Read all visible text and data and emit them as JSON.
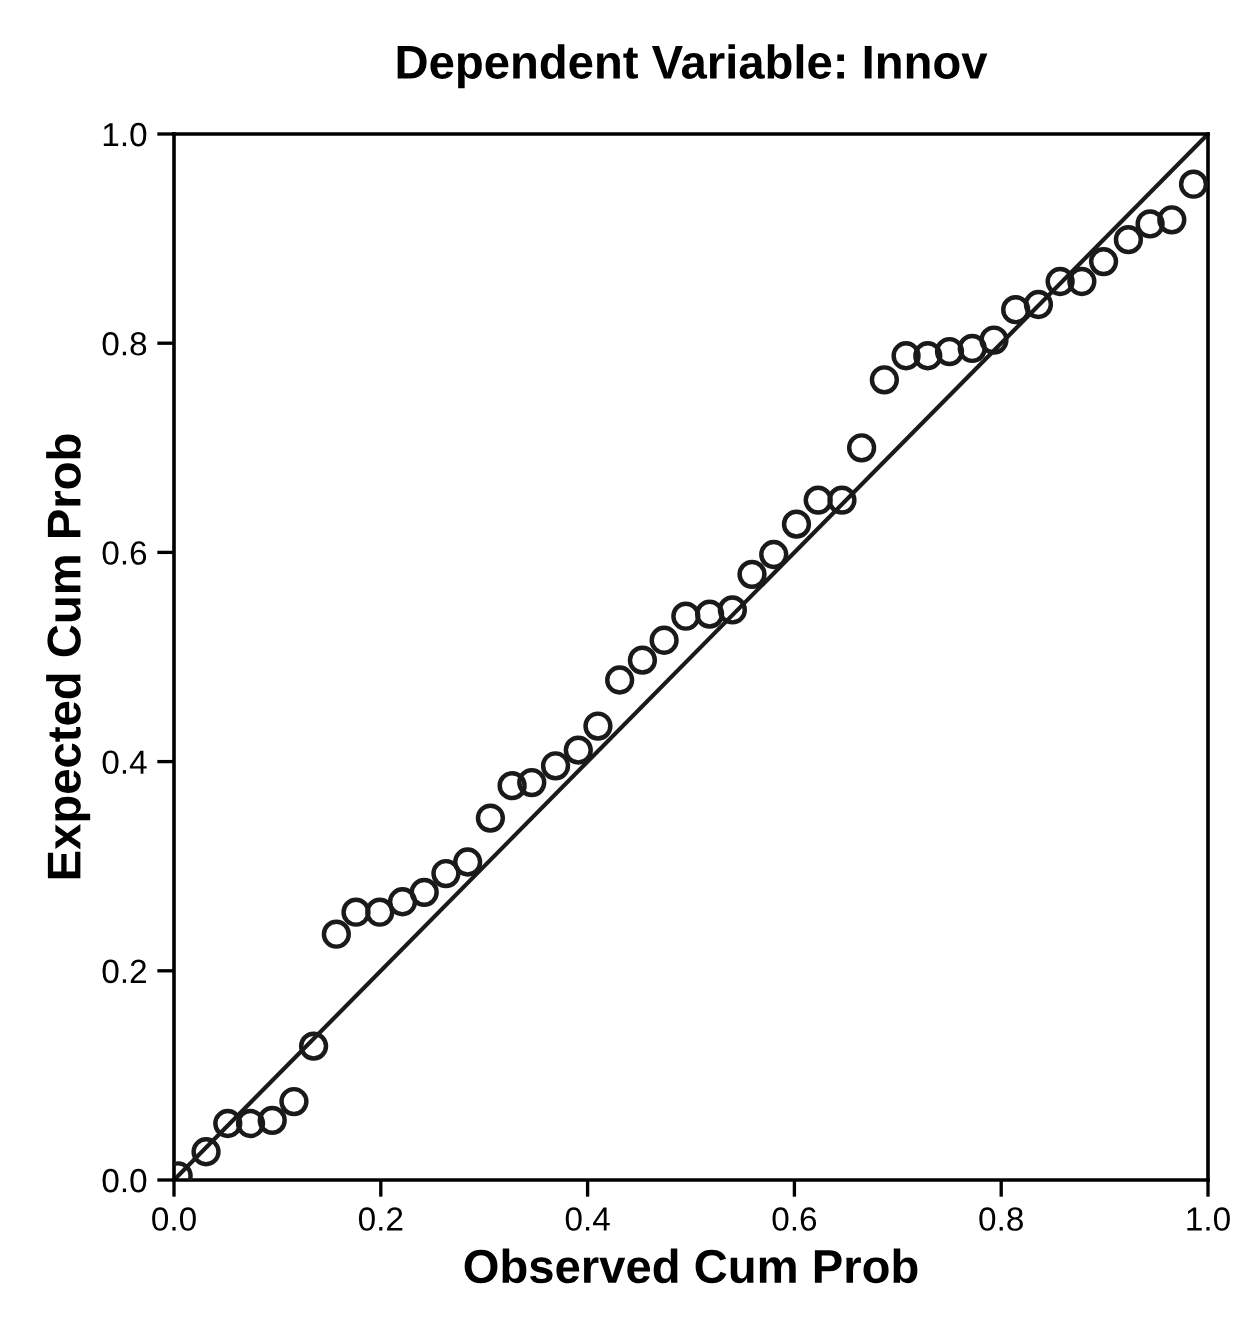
{
  "chart_data": {
    "type": "scatter",
    "title": "Dependent Variable: Innov",
    "xlabel": "Observed Cum Prob",
    "ylabel": "Expected Cum Prob",
    "xlim": [
      0,
      1
    ],
    "ylim": [
      0,
      1
    ],
    "xticks": [
      {
        "value": 0,
        "label": "0.0"
      },
      {
        "value": 0.2,
        "label": "0.2"
      },
      {
        "value": 0.4,
        "label": "0.4"
      },
      {
        "value": 0.6,
        "label": "0.6"
      },
      {
        "value": 0.8,
        "label": "0.8"
      },
      {
        "value": 1,
        "label": "1.0"
      }
    ],
    "yticks": [
      {
        "value": 0,
        "label": "0.0"
      },
      {
        "value": 0.2,
        "label": "0.2"
      },
      {
        "value": 0.4,
        "label": "0.4"
      },
      {
        "value": 0.6,
        "label": "0.6"
      },
      {
        "value": 0.8,
        "label": "0.8"
      },
      {
        "value": 1,
        "label": "1.0"
      }
    ],
    "grid": false,
    "legend": false,
    "series": [
      {
        "color": "#1a1a1a",
        "marker": "circle",
        "x": [
          0.004,
          0.031,
          0.052,
          0.074,
          0.095,
          0.116,
          0.135,
          0.157,
          0.176,
          0.199,
          0.221,
          0.242,
          0.263,
          0.284,
          0.306,
          0.327,
          0.346,
          0.369,
          0.391,
          0.41,
          0.431,
          0.453,
          0.474,
          0.495,
          0.518,
          0.54,
          0.559,
          0.58,
          0.602,
          0.623,
          0.646,
          0.665,
          0.687,
          0.708,
          0.729,
          0.75,
          0.772,
          0.793,
          0.814,
          0.836,
          0.857,
          0.878,
          0.899,
          0.923,
          0.944,
          0.965,
          0.986
        ],
        "values": [
          0.004,
          0.027,
          0.054,
          0.054,
          0.057,
          0.075,
          0.128,
          0.235,
          0.256,
          0.256,
          0.266,
          0.275,
          0.293,
          0.304,
          0.346,
          0.377,
          0.38,
          0.396,
          0.411,
          0.434,
          0.478,
          0.497,
          0.516,
          0.539,
          0.541,
          0.545,
          0.579,
          0.598,
          0.627,
          0.65,
          0.65,
          0.7,
          0.765,
          0.788,
          0.788,
          0.792,
          0.795,
          0.803,
          0.832,
          0.837,
          0.859,
          0.859,
          0.878,
          0.899,
          0.914,
          0.918,
          0.952
        ]
      },
      {
        "type": "line",
        "color": "#1a1a1a",
        "marker": "none",
        "line_style": "solid",
        "x": [
          0,
          1
        ],
        "values": [
          0,
          1
        ]
      }
    ]
  }
}
